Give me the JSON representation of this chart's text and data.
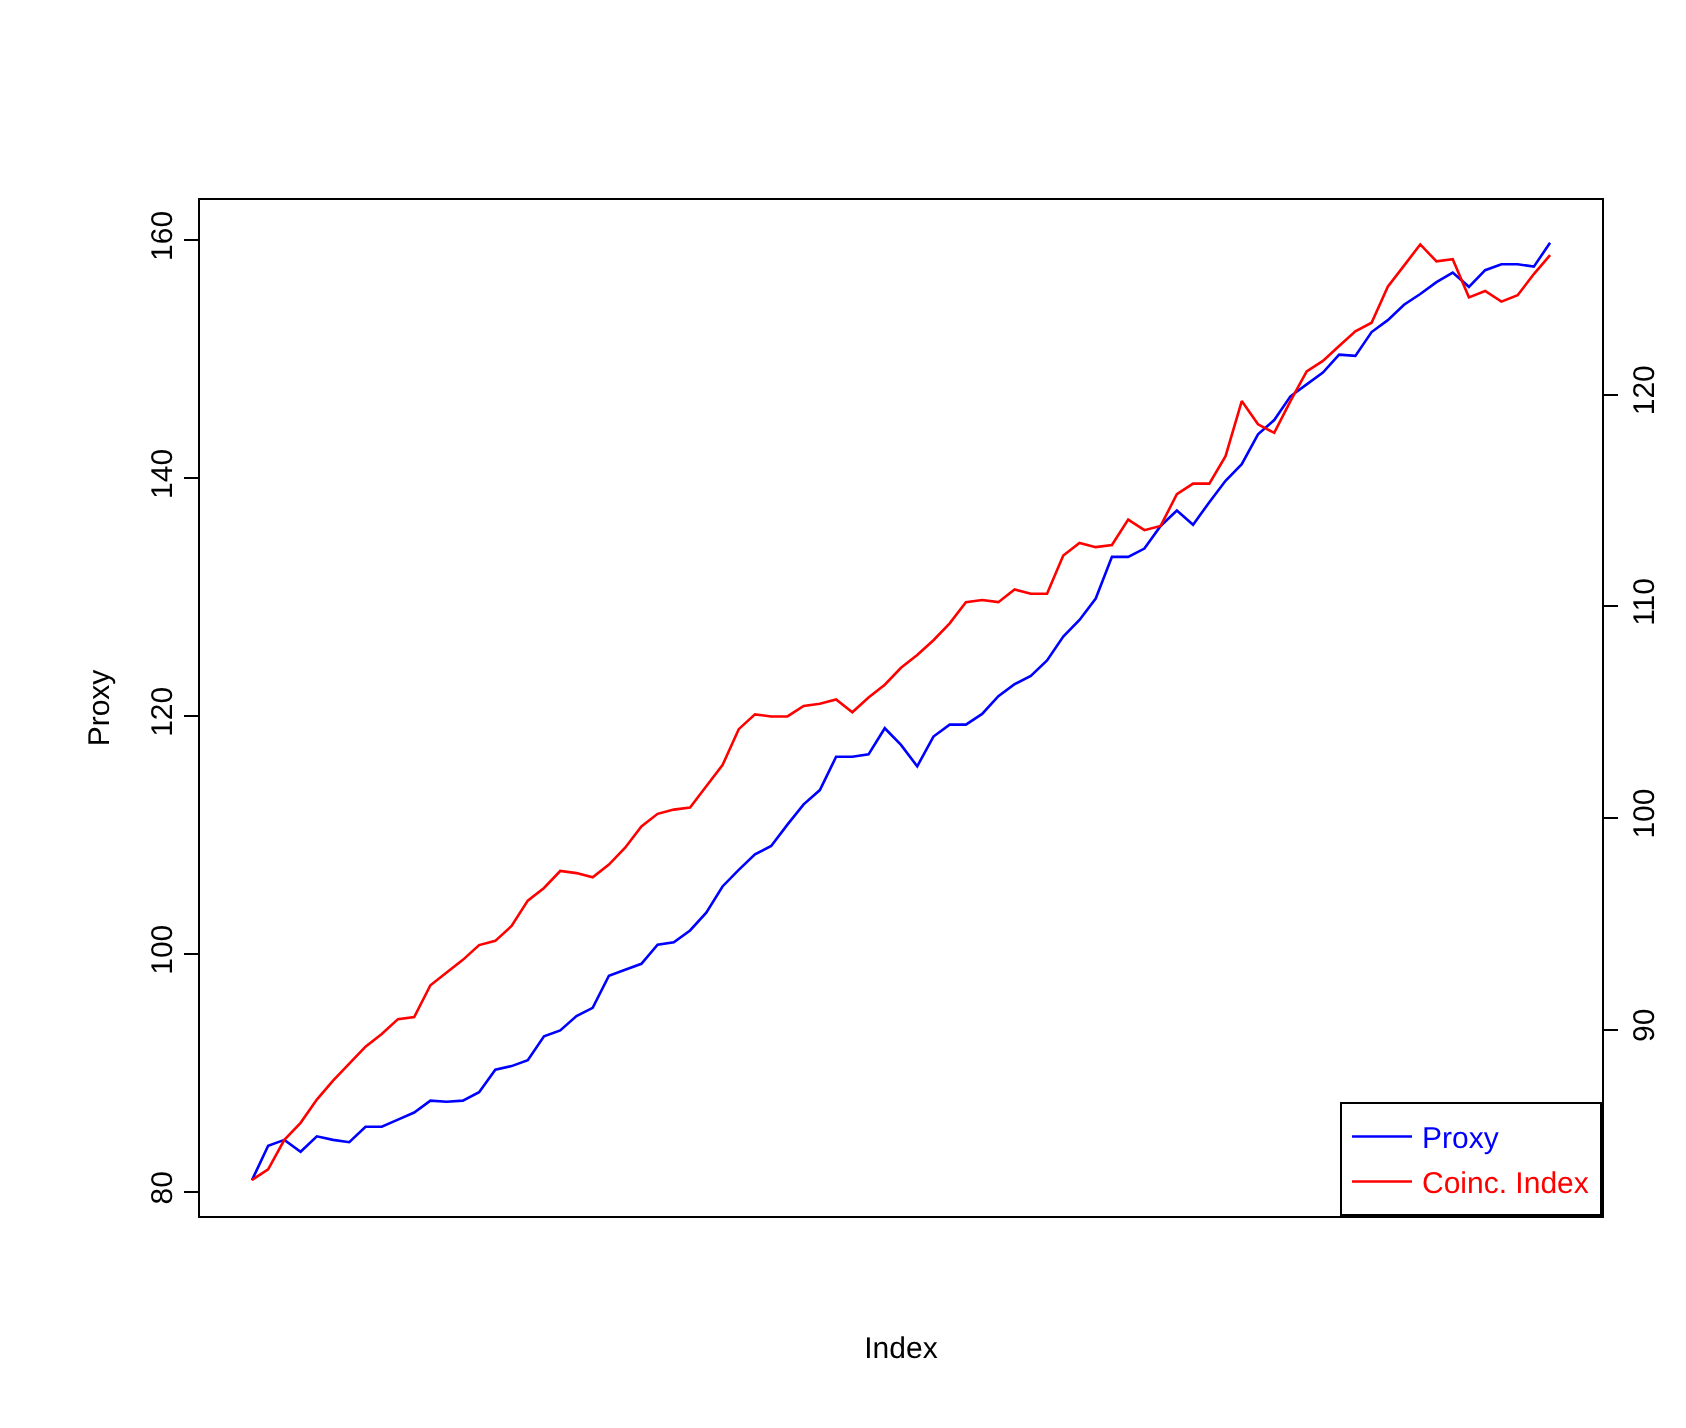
{
  "chart_data": {
    "type": "line",
    "xlabel": "Index",
    "ylabel": "Proxy",
    "categories": [
      null,
      null,
      null,
      null,
      null,
      null,
      null,
      null,
      null,
      null,
      null,
      null,
      null,
      null,
      null,
      null,
      null,
      null,
      null,
      null,
      null,
      null,
      null,
      null,
      null,
      null,
      null,
      null,
      null,
      null,
      null,
      null,
      null,
      null,
      null,
      null,
      null,
      null,
      null,
      null,
      null,
      null,
      null,
      null,
      null,
      null,
      null,
      null,
      null,
      null,
      null,
      null,
      null,
      null,
      null,
      null,
      null,
      null,
      null,
      null,
      null,
      null,
      null,
      null,
      null,
      null,
      null,
      null,
      null,
      null,
      null,
      null,
      null,
      null,
      null,
      null,
      null,
      null,
      null,
      null,
      null
    ],
    "series": [
      {
        "name": "Proxy",
        "color": "#0000ff",
        "values": [
          81.0,
          83.9,
          84.4,
          83.4,
          84.7,
          84.4,
          84.2,
          85.5,
          85.5,
          86.1,
          86.7,
          87.7,
          87.6,
          87.7,
          88.4,
          90.3,
          90.6,
          91.1,
          93.1,
          93.6,
          94.8,
          95.5,
          98.2,
          98.7,
          99.2,
          100.8,
          101.0,
          102.0,
          103.5,
          105.7,
          107.1,
          108.4,
          109.1,
          110.9,
          112.6,
          113.8,
          116.6,
          116.6,
          116.8,
          119.0,
          117.6,
          115.8,
          118.3,
          119.3,
          119.3,
          120.2,
          121.7,
          122.7,
          123.4,
          124.7,
          126.7,
          128.1,
          129.9,
          133.4,
          133.4,
          134.1,
          136.0,
          137.3,
          136.1,
          138.0,
          139.8,
          141.2,
          143.7,
          144.9,
          146.9,
          147.9,
          148.9,
          150.4,
          150.3,
          152.3,
          153.3,
          154.6,
          155.5,
          156.5,
          157.3,
          156.1,
          157.5,
          158.0,
          158.0,
          157.8,
          159.8
        ]
      },
      {
        "name": "Coinc. Index",
        "color": "#ff0000",
        "axis": "y2",
        "values": [
          82.9,
          83.4,
          84.8,
          85.6,
          86.7,
          87.6,
          88.4,
          89.2,
          89.8,
          90.5,
          90.6,
          92.1,
          92.7,
          93.3,
          94.0,
          94.2,
          94.9,
          96.1,
          96.7,
          97.5,
          97.4,
          97.2,
          97.8,
          98.6,
          99.6,
          100.2,
          100.4,
          100.5,
          101.5,
          102.5,
          104.2,
          104.9,
          104.8,
          104.8,
          105.3,
          105.4,
          105.6,
          105.0,
          105.7,
          106.3,
          107.1,
          107.7,
          108.4,
          109.2,
          110.2,
          110.3,
          110.2,
          110.8,
          110.6,
          110.6,
          112.4,
          113.0,
          112.8,
          112.9,
          114.1,
          113.6,
          113.8,
          115.3,
          115.8,
          115.8,
          117.1,
          119.7,
          118.6,
          118.2,
          119.7,
          121.1,
          121.6,
          122.3,
          123.0,
          123.4,
          125.1,
          126.1,
          127.1,
          126.3,
          126.4,
          124.6,
          124.9,
          124.4,
          124.7,
          125.7,
          126.6
        ]
      }
    ],
    "ylim": [
      78.0,
      163.4
    ],
    "yticks": [
      80,
      100,
      120,
      140,
      160
    ],
    "y2lim": [
      81.2,
      129.2
    ],
    "y2ticks": [
      90,
      100,
      110,
      120
    ],
    "legend": "bottom right",
    "marker": "none",
    "line_style": "solid"
  }
}
